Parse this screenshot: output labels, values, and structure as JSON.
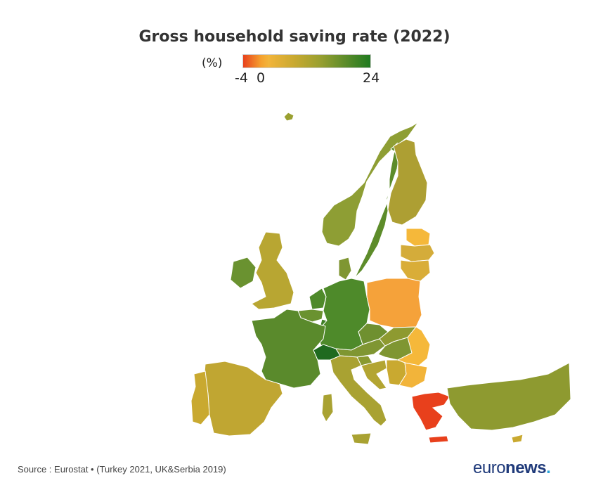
{
  "title": "Gross household saving rate (2022)",
  "legend": {
    "unit": "(%)",
    "min_label": "-4",
    "zero_label": "0",
    "max_label": "24",
    "colors": {
      "low": "#e8401c",
      "mid": "#c9a930",
      "high": "#1f7a1f"
    }
  },
  "map_data": {
    "type": "choropleth",
    "scale_range": [
      -4,
      24
    ],
    "regions": [
      {
        "name": "Iceland",
        "color": "#9aa030"
      },
      {
        "name": "Ireland",
        "color": "#6a9230"
      },
      {
        "name": "United Kingdom",
        "color": "#b8a632"
      },
      {
        "name": "Norway",
        "color": "#8e9e34"
      },
      {
        "name": "Sweden",
        "color": "#5d8c2a"
      },
      {
        "name": "Finland",
        "color": "#ad9f33"
      },
      {
        "name": "Denmark",
        "color": "#7f9632"
      },
      {
        "name": "Estonia",
        "color": "#f5b83a"
      },
      {
        "name": "Latvia",
        "color": "#d4ac3a"
      },
      {
        "name": "Lithuania",
        "color": "#d9ad38"
      },
      {
        "name": "Netherlands",
        "color": "#4e8a2a"
      },
      {
        "name": "Belgium",
        "color": "#6a9230"
      },
      {
        "name": "Luxembourg",
        "color": "#3f7f25"
      },
      {
        "name": "Germany",
        "color": "#4e8a2a"
      },
      {
        "name": "Poland",
        "color": "#f5a23a"
      },
      {
        "name": "France",
        "color": "#5a8a2c"
      },
      {
        "name": "Switzerland",
        "color": "#1f6a1f"
      },
      {
        "name": "Austria",
        "color": "#7f9632"
      },
      {
        "name": "Czechia",
        "color": "#6f9030"
      },
      {
        "name": "Slovakia",
        "color": "#8e9a30"
      },
      {
        "name": "Hungary",
        "color": "#7f9632"
      },
      {
        "name": "Slovenia",
        "color": "#8a9a30"
      },
      {
        "name": "Croatia",
        "color": "#b3a532"
      },
      {
        "name": "Serbia",
        "color": "#c9a930"
      },
      {
        "name": "Romania",
        "color": "#f5b83a"
      },
      {
        "name": "Bulgaria",
        "color": "#f2b43a"
      },
      {
        "name": "Italy",
        "color": "#a9a232"
      },
      {
        "name": "Spain",
        "color": "#c0a632"
      },
      {
        "name": "Portugal",
        "color": "#c9a930"
      },
      {
        "name": "Greece",
        "color": "#e8401c"
      },
      {
        "name": "Turkey",
        "color": "#8e9a30"
      },
      {
        "name": "Cyprus",
        "color": "#c9a930"
      }
    ]
  },
  "footer": {
    "source": "Source : Eurostat • (Turkey 2021, UK&Serbia 2019)",
    "logo_light": "euro",
    "logo_bold": "news",
    "logo_dot": "."
  }
}
